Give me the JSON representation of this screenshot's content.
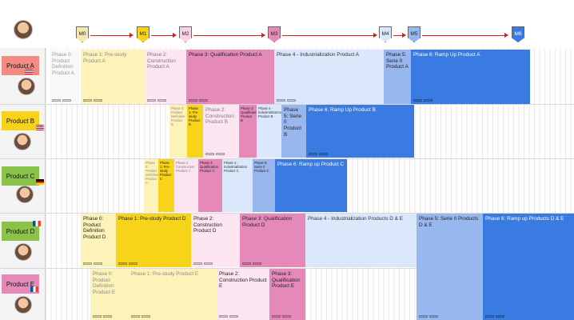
{
  "milestones": [
    "M0",
    "M1",
    "M2",
    "M3",
    "M4",
    "M5",
    "M6"
  ],
  "milestone_colors": [
    "#f7e7b0",
    "#f7d31a",
    "#f8d3e6",
    "#e58ab8",
    "#dbe8fb",
    "#97b7ee",
    "#3a7be1"
  ],
  "products": [
    {
      "label": "Product A",
      "color": "#f28b82",
      "flag": "us"
    },
    {
      "label": "Product B",
      "color": "#f7d31a",
      "flag": "us"
    },
    {
      "label": "Product C",
      "color": "#8bc34a",
      "flag": "de"
    },
    {
      "label": "Product D",
      "color": "#8bc34a",
      "flag": "fr"
    },
    {
      "label": "Product E",
      "color": "#e58ab8",
      "flag": "fr"
    }
  ],
  "phases": {
    "a": [
      "Phase 0: Product Definition Product A",
      "Phase 1: Pre-study Product A",
      "Phase 2: Construction Product A",
      "Phase 3: Qualification Product A",
      "Phase 4 - Industrialization Product A",
      "Phase 5: Serie 0 Product A",
      "Phase 6: Ramp Up Product A"
    ],
    "b": [
      "Phase 0: Product Definition Product B",
      "Phase 1: Pre-study Product B",
      "Phase 2: Construction Product B",
      "Phase 3: Qualification Product B",
      "Phase 4 - Industrialization Product B",
      "Phase 5: Serie 0 Product B",
      "Phase 6: Ramp Up Product B"
    ],
    "c": [
      "Phase 0: Product Definition Product C",
      "Phase 1: Pre-study Product C",
      "Phase 2 Construction Product C",
      "Phase 3: Qualification Product C",
      "Phase 4 - Industrialization Product C",
      "Phase 5: Serie 0 Product C",
      "Phase 6: Ramp up Product C"
    ],
    "d": [
      "Phase 0: Product Definition Product D",
      "Phase 1: Pre-study Product D",
      "Phase 2: Construction Product D",
      "Phase 3: Qualification Product D",
      "Phase 4 - Industrialization Products D & E",
      "Phase 5: Serie 0 Products D & E",
      "Phase 6: Ramp up Products D & E"
    ],
    "e": [
      "Phase 0: Product Definition Product E",
      "Phase 1: Pre-study Product E",
      "Phase 2: Construction Product E",
      "Phase 3: Qualification Product E"
    ]
  }
}
